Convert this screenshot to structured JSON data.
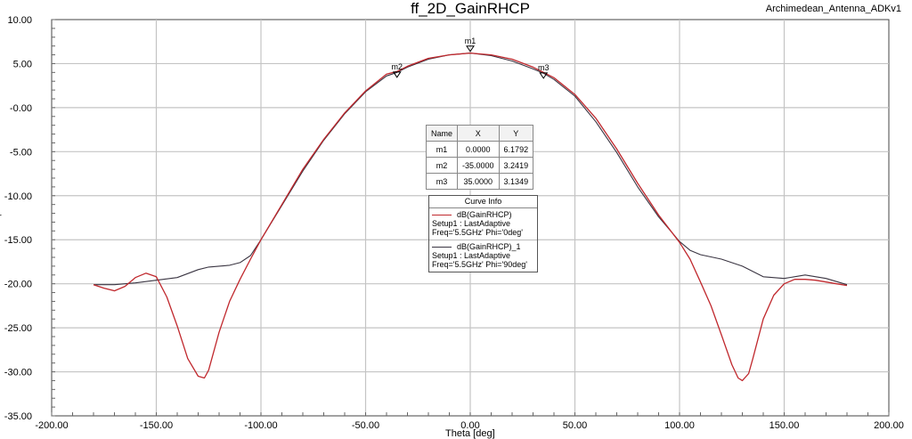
{
  "title": "ff_2D_GainRHCP",
  "project": "Archimedean_Antenna_ADKv1",
  "chart_data": {
    "type": "line",
    "title": "ff_2D_GainRHCP",
    "xlabel": "Theta [deg]",
    "ylabel": "",
    "xlim": [
      -200,
      200
    ],
    "ylim": [
      -35,
      10
    ],
    "xticks": [
      "-200.00",
      "-150.00",
      "-100.00",
      "-50.00",
      "0.00",
      "50.00",
      "100.00",
      "150.00",
      "200.00"
    ],
    "yticks": [
      "10.00",
      "5.00",
      "-0.00",
      "-5.00",
      "-10.00",
      "-15.00",
      "-20.00",
      "-25.00",
      "-30.00",
      "-35.00"
    ],
    "grid": true,
    "series": [
      {
        "name": "dB(GainRHCP)",
        "color": "#c0282d",
        "x": [
          -180,
          -175,
          -170,
          -165,
          -160,
          -155,
          -150,
          -145,
          -140,
          -135,
          -130,
          -127,
          -125,
          -120,
          -115,
          -110,
          -105,
          -100,
          -90,
          -80,
          -70,
          -60,
          -50,
          -40,
          -35,
          -30,
          -20,
          -10,
          0,
          10,
          20,
          30,
          35,
          40,
          50,
          60,
          70,
          80,
          90,
          100,
          105,
          110,
          115,
          120,
          125,
          128,
          130,
          133,
          135,
          140,
          145,
          150,
          155,
          160,
          165,
          170,
          175,
          180
        ],
        "y": [
          -20.1,
          -20.5,
          -20.8,
          -20.3,
          -19.3,
          -18.8,
          -19.2,
          -21.5,
          -24.8,
          -28.5,
          -30.5,
          -30.7,
          -29.8,
          -25.5,
          -22.0,
          -19.5,
          -17.2,
          -15.0,
          -11.0,
          -7.0,
          -3.6,
          -0.6,
          1.9,
          3.8,
          4.1,
          4.7,
          5.6,
          6.0,
          6.2,
          6.0,
          5.5,
          4.6,
          4.0,
          3.4,
          1.5,
          -1.2,
          -4.7,
          -8.6,
          -12.2,
          -15.3,
          -17.2,
          -19.8,
          -22.5,
          -25.8,
          -29.2,
          -30.7,
          -31.0,
          -30.2,
          -28.5,
          -24.0,
          -21.3,
          -20.0,
          -19.5,
          -19.5,
          -19.6,
          -19.8,
          -20.0,
          -20.2
        ]
      },
      {
        "name": "dB(GainRHCP)_1",
        "color": "#3a3542",
        "x": [
          -180,
          -170,
          -160,
          -150,
          -140,
          -130,
          -125,
          -120,
          -115,
          -110,
          -105,
          -100,
          -90,
          -80,
          -70,
          -60,
          -50,
          -40,
          -35,
          -30,
          -20,
          -10,
          0,
          10,
          20,
          30,
          35,
          40,
          50,
          60,
          70,
          80,
          90,
          100,
          105,
          110,
          120,
          130,
          140,
          150,
          160,
          170,
          180
        ],
        "y": [
          -20.1,
          -20.1,
          -19.9,
          -19.6,
          -19.3,
          -18.4,
          -18.1,
          -18.0,
          -17.9,
          -17.6,
          -16.8,
          -15.0,
          -11.1,
          -7.2,
          -3.7,
          -0.7,
          1.8,
          3.6,
          4.0,
          4.6,
          5.5,
          6.0,
          6.2,
          5.9,
          5.3,
          4.4,
          3.9,
          3.2,
          1.3,
          -1.6,
          -5.1,
          -9.0,
          -12.4,
          -15.2,
          -16.2,
          -16.7,
          -17.2,
          -18.0,
          -19.2,
          -19.4,
          -19.0,
          -19.4,
          -20.1
        ]
      }
    ],
    "markers": [
      {
        "name": "m1",
        "x": 0,
        "y": 6.1792
      },
      {
        "name": "m2",
        "x": -35,
        "y": 3.2419
      },
      {
        "name": "m3",
        "x": 35,
        "y": 3.1349
      }
    ]
  },
  "marker_table": {
    "headers": [
      "Name",
      "X",
      "Y"
    ],
    "rows": [
      [
        "m1",
        "0.0000",
        "6.1792"
      ],
      [
        "m2",
        "-35.0000",
        "3.2419"
      ],
      [
        "m3",
        "35.0000",
        "3.1349"
      ]
    ]
  },
  "curve_info": {
    "header": "Curve Info",
    "entries": [
      {
        "title": "dB(GainRHCP)",
        "line1": "Setup1 : LastAdaptive",
        "line2": "Freq='5.5GHz' Phi='0deg'"
      },
      {
        "title": "dB(GainRHCP)_1",
        "line1": "Setup1 : LastAdaptive",
        "line2": "Freq='5.5GHz' Phi='90deg'"
      }
    ]
  }
}
